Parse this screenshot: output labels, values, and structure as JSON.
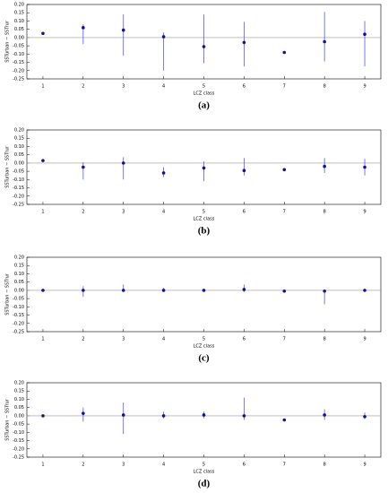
{
  "chart_data": [
    {
      "type": "errorbar",
      "caption": "(a)",
      "xlabel": "LCZ class",
      "ylabel": "SSTurban − SSTrur",
      "color": "#1010a0",
      "errcolor": "#5555ff",
      "x": [
        1,
        2,
        3,
        4,
        5,
        6,
        7,
        8,
        9
      ],
      "values": [
        0.025,
        0.06,
        0.045,
        0.005,
        -0.055,
        -0.03,
        -0.09,
        -0.025,
        0.02
      ],
      "low": [
        null,
        -0.04,
        -0.11,
        -0.2,
        -0.155,
        -0.175,
        null,
        -0.145,
        -0.175
      ],
      "high": [
        null,
        0.08,
        0.14,
        0.03,
        0.14,
        0.095,
        null,
        0.155,
        0.1
      ],
      "hline": 0,
      "xlim": [
        0.6,
        9.4
      ],
      "xticks": [
        1,
        2,
        3,
        4,
        5,
        6,
        7,
        8,
        9
      ],
      "ylim": [
        -0.25,
        0.2
      ],
      "yticks": [
        {
          "value": 0.2,
          "label": "0.20"
        },
        {
          "value": 0.15,
          "label": "0.15"
        },
        {
          "value": 0.1,
          "label": "0.10"
        },
        {
          "value": 0.05,
          "label": "0.05"
        },
        {
          "value": 0,
          "label": "0.00"
        },
        {
          "value": -0.05,
          "label": "-0.05"
        },
        {
          "value": -0.1,
          "label": "-0.10"
        },
        {
          "value": -0.15,
          "label": "-0.15"
        },
        {
          "value": -0.2,
          "label": "-0.20"
        },
        {
          "value": -0.25,
          "label": "-0.25"
        }
      ]
    },
    {
      "type": "errorbar",
      "caption": "(b)",
      "xlabel": "LCZ class",
      "ylabel": "SSTurban − SSTrur",
      "color": "#1010a0",
      "errcolor": "#5555ff",
      "x": [
        1,
        2,
        3,
        4,
        5,
        6,
        7,
        8,
        9
      ],
      "values": [
        0.015,
        -0.025,
        0.0,
        -0.06,
        -0.03,
        -0.045,
        -0.04,
        -0.02,
        -0.025
      ],
      "low": [
        null,
        -0.1,
        -0.1,
        -0.085,
        -0.11,
        -0.075,
        null,
        -0.06,
        -0.075
      ],
      "high": [
        null,
        0.005,
        0.035,
        -0.025,
        0.01,
        0.03,
        null,
        0.03,
        0.025
      ],
      "hline": 0,
      "xlim": [
        0.6,
        9.4
      ],
      "xticks": [
        1,
        2,
        3,
        4,
        5,
        6,
        7,
        8,
        9
      ],
      "ylim": [
        -0.25,
        0.2
      ],
      "yticks": [
        {
          "value": 0.2,
          "label": "0.20"
        },
        {
          "value": 0.15,
          "label": "0.15"
        },
        {
          "value": 0.1,
          "label": "0.10"
        },
        {
          "value": 0.05,
          "label": "0.05"
        },
        {
          "value": 0,
          "label": "0.00"
        },
        {
          "value": -0.05,
          "label": "-0.05"
        },
        {
          "value": -0.1,
          "label": "-0.10"
        },
        {
          "value": -0.15,
          "label": "-0.15"
        },
        {
          "value": -0.2,
          "label": "-0.20"
        },
        {
          "value": -0.25,
          "label": "-0.25"
        }
      ]
    },
    {
      "type": "errorbar",
      "caption": "(c)",
      "xlabel": "LCZ class",
      "ylabel": "SSTurban − SSTrur",
      "color": "#1010a0",
      "errcolor": "#5555ff",
      "x": [
        1,
        2,
        3,
        4,
        5,
        6,
        7,
        8,
        9
      ],
      "values": [
        0.0,
        0.0,
        0.0,
        0.0,
        0.0,
        0.005,
        -0.005,
        -0.005,
        0.0
      ],
      "low": [
        null,
        -0.04,
        -0.01,
        -0.01,
        null,
        -0.01,
        null,
        -0.085,
        null
      ],
      "high": [
        null,
        0.025,
        0.035,
        0.015,
        null,
        0.035,
        null,
        0.0,
        null
      ],
      "hline": 0,
      "xlim": [
        0.6,
        9.4
      ],
      "xticks": [
        1,
        2,
        3,
        4,
        5,
        6,
        7,
        8,
        9
      ],
      "ylim": [
        -0.25,
        0.2
      ],
      "yticks": [
        {
          "value": 0.2,
          "label": "0.20"
        },
        {
          "value": 0.15,
          "label": "0.15"
        },
        {
          "value": 0.1,
          "label": "0.10"
        },
        {
          "value": 0.05,
          "label": "0.05"
        },
        {
          "value": 0,
          "label": "0.00"
        },
        {
          "value": -0.05,
          "label": "-0.05"
        },
        {
          "value": -0.1,
          "label": "-0.10"
        },
        {
          "value": -0.15,
          "label": "-0.15"
        },
        {
          "value": -0.2,
          "label": "-0.20"
        },
        {
          "value": -0.25,
          "label": "-0.25"
        }
      ]
    },
    {
      "type": "errorbar",
      "caption": "(d)",
      "xlabel": "LCZ class",
      "ylabel": "SSTurban − SSTrur",
      "color": "#1010a0",
      "errcolor": "#5555ff",
      "x": [
        1,
        2,
        3,
        4,
        5,
        6,
        7,
        8,
        9
      ],
      "values": [
        0.0,
        0.015,
        0.005,
        0.0,
        0.005,
        0.0,
        -0.025,
        0.005,
        -0.005
      ],
      "low": [
        null,
        -0.035,
        -0.11,
        -0.015,
        -0.015,
        -0.025,
        null,
        -0.025,
        -0.02
      ],
      "high": [
        null,
        0.05,
        0.08,
        0.025,
        0.025,
        0.11,
        null,
        0.04,
        0.02
      ],
      "hline": 0,
      "xlim": [
        0.6,
        9.4
      ],
      "xticks": [
        1,
        2,
        3,
        4,
        5,
        6,
        7,
        8,
        9
      ],
      "ylim": [
        -0.25,
        0.2
      ],
      "yticks": [
        {
          "value": 0.2,
          "label": "0.20"
        },
        {
          "value": 0.15,
          "label": "0.15"
        },
        {
          "value": 0.1,
          "label": "0.10"
        },
        {
          "value": 0.05,
          "label": "0.05"
        },
        {
          "value": 0,
          "label": "0.00"
        },
        {
          "value": -0.05,
          "label": "-0.05"
        },
        {
          "value": -0.1,
          "label": "-0.10"
        },
        {
          "value": -0.15,
          "label": "-0.15"
        },
        {
          "value": -0.2,
          "label": "-0.20"
        },
        {
          "value": -0.25,
          "label": "-0.25"
        }
      ]
    }
  ]
}
